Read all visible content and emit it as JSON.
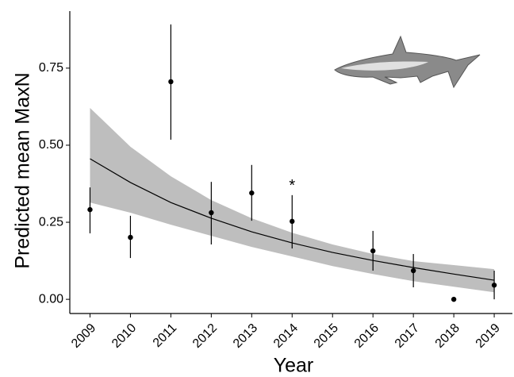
{
  "chart_data": {
    "type": "scatter",
    "x_label": "Year",
    "y_label": "Predicted mean MaxN",
    "annotation": "*",
    "xlim": [
      2008.5,
      2019.45
    ],
    "ylim": [
      -0.046,
      0.935
    ],
    "xticks": [
      2009,
      2010,
      2011,
      2012,
      2013,
      2014,
      2015,
      2016,
      2017,
      2018,
      2019
    ],
    "yticks": [
      {
        "value": 0,
        "label": "0.00"
      },
      {
        "value": 0.25,
        "label": "0.25"
      },
      {
        "value": 0.5,
        "label": "0.50"
      },
      {
        "value": 0.75,
        "label": "0.75"
      }
    ],
    "series": [
      {
        "color": "#000000",
        "x": [
          2009,
          2010,
          2011,
          2012,
          2013,
          2014,
          2016,
          2017,
          2018,
          2019
        ],
        "values": [
          0.291,
          0.201,
          0.706,
          0.281,
          0.345,
          0.253,
          0.157,
          0.093,
          0.0,
          0.046
        ],
        "lower": [
          0.214,
          0.134,
          0.518,
          0.178,
          0.255,
          0.165,
          0.093,
          0.039,
          null,
          0.0
        ],
        "upper": [
          0.363,
          0.271,
          0.892,
          0.381,
          0.436,
          0.338,
          0.222,
          0.147,
          null,
          0.093
        ]
      }
    ],
    "fit": {
      "line_color": "#000000",
      "band_color": "#bebebe",
      "x": [
        2009,
        2010,
        2011,
        2012,
        2013,
        2014,
        2015,
        2016,
        2017,
        2018,
        2019
      ],
      "values": [
        0.456,
        0.379,
        0.314,
        0.263,
        0.219,
        0.183,
        0.152,
        0.126,
        0.103,
        0.082,
        0.062
      ],
      "lower": [
        0.314,
        0.281,
        0.242,
        0.206,
        0.17,
        0.139,
        0.108,
        0.082,
        0.059,
        0.041,
        0.023
      ],
      "upper": [
        0.621,
        0.495,
        0.399,
        0.322,
        0.263,
        0.216,
        0.178,
        0.147,
        0.124,
        0.111,
        0.098
      ]
    }
  }
}
